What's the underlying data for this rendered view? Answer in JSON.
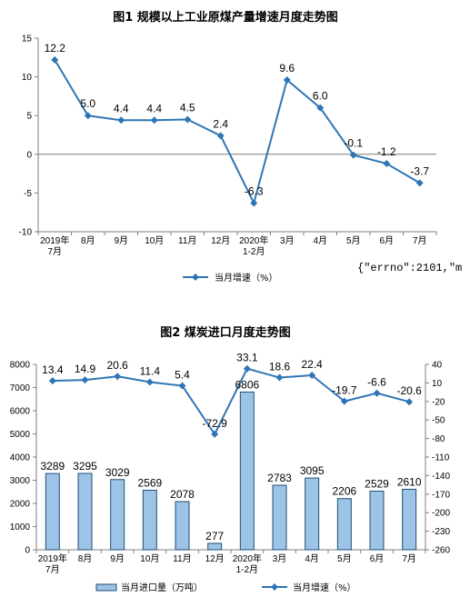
{
  "overlay_text": "{\"errno\":2101,\"m",
  "colors": {
    "line": "#2e75b6",
    "bar_fill": "#9dc3e6",
    "bar_stroke": "#1f4e79",
    "axis": "#7f7f7f"
  },
  "chart_data": [
    {
      "type": "line",
      "title": "图1  规模以上工业原煤产量增速月度走势图",
      "categories": [
        "2019年\n7月",
        "8月",
        "9月",
        "10月",
        "11月",
        "12月",
        "2020年\n1-2月",
        "3月",
        "4月",
        "5月",
        "6月",
        "7月"
      ],
      "series": [
        {
          "name": "当月增速（%）",
          "values": [
            12.2,
            5.0,
            4.4,
            4.4,
            4.5,
            2.4,
            -6.3,
            9.6,
            6.0,
            -0.1,
            -1.2,
            -3.7
          ],
          "labels": [
            "12.2",
            "5.0",
            "4.4",
            "4.4",
            "4.5",
            "2.4",
            "-6.3",
            "9.6",
            "6.0",
            "-0.1",
            "-1.2",
            "-3.7"
          ]
        }
      ],
      "ylim": [
        -10,
        15
      ],
      "yticks": [
        -10,
        -5,
        0,
        5,
        10,
        15
      ],
      "legend_position": "bottom",
      "grid": false
    },
    {
      "type": "bar+line",
      "title": "图2  煤炭进口月度走势图",
      "categories": [
        "2019年\n7月",
        "8月",
        "9月",
        "10月",
        "11月",
        "12月",
        "2020年\n1-2月",
        "3月",
        "4月",
        "5月",
        "6月",
        "7月"
      ],
      "series": [
        {
          "name": "当月进口量（万吨）",
          "type": "bar",
          "axis": "left",
          "values": [
            3289,
            3295,
            3029,
            2569,
            2078,
            277,
            6806,
            2783,
            3095,
            2206,
            2529,
            2610
          ]
        },
        {
          "name": "当月增速（%）",
          "type": "line",
          "axis": "right",
          "values": [
            13.4,
            14.9,
            20.6,
            11.4,
            5.4,
            -72.9,
            33.1,
            18.6,
            22.4,
            -19.7,
            -6.6,
            -20.6
          ],
          "labels": [
            "13.4",
            "14.9",
            "20.6",
            "11.4",
            "5.4",
            "-72.9",
            "33.1",
            "18.6",
            "22.4",
            "-19.7",
            "-6.6",
            "-20.6"
          ]
        }
      ],
      "ylim_left": [
        0,
        8000
      ],
      "yticks_left": [
        0,
        1000,
        2000,
        3000,
        4000,
        5000,
        6000,
        7000,
        8000
      ],
      "ylim_right": [
        -260,
        40
      ],
      "yticks_right": [
        40,
        10,
        -20,
        -50,
        -80,
        -110,
        -140,
        -170,
        -200,
        -230,
        -260
      ],
      "legend_position": "bottom",
      "grid": false
    }
  ]
}
